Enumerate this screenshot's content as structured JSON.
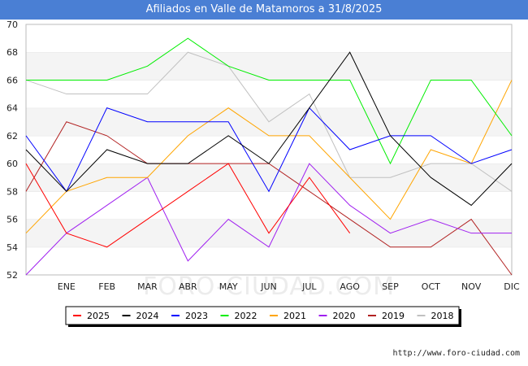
{
  "chart_data": {
    "type": "line",
    "title": "Afiliados en Valle de Matamoros a 31/8/2025",
    "xlabel": "",
    "ylabel": "",
    "x_ticks": [
      "ENE",
      "FEB",
      "MAR",
      "ABR",
      "MAY",
      "JUN",
      "JUL",
      "AGO",
      "SEP",
      "OCT",
      "NOV",
      "DIC"
    ],
    "ylim": [
      52,
      70
    ],
    "y_ticks": [
      52,
      54,
      56,
      58,
      60,
      62,
      64,
      66,
      68,
      70
    ],
    "grid": "horizontal bands",
    "legend_position": "bottom",
    "watermark": "FORO-CIUDAD.COM",
    "source_text": "http://www.foro-ciudad.com",
    "series": [
      {
        "name": "2025",
        "color": "#ff0000",
        "values": [
          60,
          55,
          54,
          56,
          58,
          60,
          55,
          59,
          55
        ]
      },
      {
        "name": "2024",
        "color": "#000000",
        "values": [
          61,
          58,
          61,
          60,
          60,
          62,
          60,
          64,
          68,
          62,
          59,
          57,
          60
        ]
      },
      {
        "name": "2023",
        "color": "#0000ff",
        "values": [
          62,
          58,
          64,
          63,
          63,
          63,
          58,
          64,
          61,
          62,
          62,
          60,
          61
        ]
      },
      {
        "name": "2022",
        "color": "#00ee00",
        "values": [
          66,
          66,
          66,
          67,
          69,
          67,
          66,
          66,
          66,
          60,
          66,
          66,
          62
        ]
      },
      {
        "name": "2021",
        "color": "#ffa500",
        "values": [
          55,
          58,
          59,
          59,
          62,
          64,
          62,
          62,
          59,
          56,
          61,
          60,
          66
        ]
      },
      {
        "name": "2020",
        "color": "#a020f0",
        "values": [
          52,
          55,
          57,
          59,
          53,
          56,
          54,
          60,
          57,
          55,
          56,
          55,
          55
        ]
      },
      {
        "name": "2019",
        "color": "#b22222",
        "values": [
          58,
          63,
          62,
          60,
          60,
          60,
          60,
          58,
          56,
          54,
          54,
          56,
          52
        ]
      },
      {
        "name": "2018",
        "color": "#c0c0c0",
        "values": [
          66,
          65,
          65,
          65,
          68,
          67,
          63,
          65,
          59,
          59,
          60,
          60,
          58
        ]
      }
    ]
  }
}
